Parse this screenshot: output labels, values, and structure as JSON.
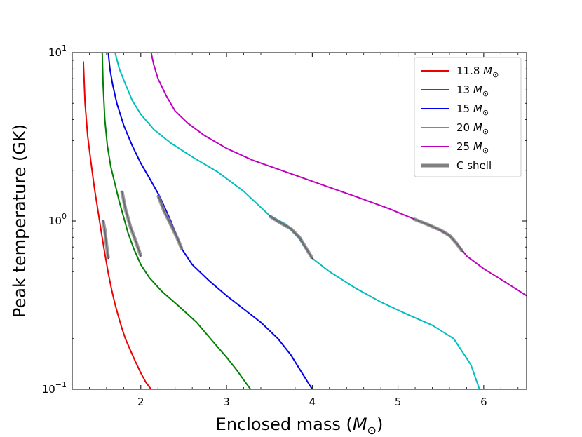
{
  "chart_data": {
    "type": "line",
    "title": "",
    "xlabel": "Enclosed mass",
    "xlabel_unit": "M",
    "xlabel_unit_sub": "⊙",
    "ylabel": "Peak temperature (GK)",
    "xlim": [
      1.2,
      6.5
    ],
    "ylim": [
      0.1,
      10
    ],
    "yscale": "log",
    "x_ticks": [
      2,
      3,
      4,
      5,
      6
    ],
    "x_tick_labels": [
      "2",
      "3",
      "4",
      "5",
      "6"
    ],
    "y_ticks": [
      0.1,
      1,
      10
    ],
    "y_tick_labels": [
      {
        "base": "10",
        "exp": "−1"
      },
      {
        "base": "10",
        "exp": "0"
      },
      {
        "base": "10",
        "exp": "1"
      }
    ],
    "grid": false,
    "legend_position": "top-right",
    "series": [
      {
        "name": "11.8",
        "unit": "M",
        "unit_sub": "⊙",
        "color": "#ee0000",
        "x": [
          1.33,
          1.35,
          1.38,
          1.42,
          1.46,
          1.5,
          1.54,
          1.58,
          1.62,
          1.66,
          1.7,
          1.74,
          1.78,
          1.82,
          1.88,
          1.94,
          2.0,
          2.06,
          2.12
        ],
        "y": [
          8.8,
          5.0,
          3.2,
          2.2,
          1.55,
          1.15,
          0.85,
          0.64,
          0.49,
          0.39,
          0.32,
          0.27,
          0.23,
          0.2,
          0.17,
          0.145,
          0.125,
          0.11,
          0.1
        ]
      },
      {
        "name": "13",
        "unit": "M",
        "unit_sub": "⊙",
        "color": "#008000",
        "x": [
          1.55,
          1.56,
          1.58,
          1.61,
          1.65,
          1.7,
          1.75,
          1.8,
          1.85,
          1.92,
          2.0,
          2.1,
          2.25,
          2.45,
          2.65,
          2.85,
          3.0,
          3.12,
          3.22,
          3.28
        ],
        "y": [
          10.0,
          6.5,
          4.0,
          2.8,
          2.1,
          1.65,
          1.3,
          1.05,
          0.85,
          0.68,
          0.55,
          0.46,
          0.38,
          0.31,
          0.25,
          0.19,
          0.155,
          0.13,
          0.11,
          0.1
        ]
      },
      {
        "name": "15",
        "unit": "M",
        "unit_sub": "⊙",
        "color": "#0000ee",
        "x": [
          1.62,
          1.64,
          1.67,
          1.72,
          1.8,
          1.9,
          2.0,
          2.1,
          2.22,
          2.35,
          2.48,
          2.6,
          2.8,
          3.0,
          3.2,
          3.4,
          3.6,
          3.75,
          3.88,
          4.0
        ],
        "y": [
          10.0,
          8.0,
          6.5,
          5.0,
          3.7,
          2.8,
          2.2,
          1.8,
          1.4,
          1.0,
          0.68,
          0.55,
          0.44,
          0.36,
          0.3,
          0.25,
          0.2,
          0.16,
          0.125,
          0.1
        ]
      },
      {
        "name": "20",
        "unit": "M",
        "unit_sub": "⊙",
        "color": "#00bfbf",
        "x": [
          1.7,
          1.75,
          1.82,
          1.9,
          2.0,
          2.15,
          2.35,
          2.6,
          2.9,
          3.2,
          3.5,
          3.7,
          3.85,
          4.0,
          4.2,
          4.5,
          4.8,
          5.1,
          5.4,
          5.65,
          5.85,
          5.95
        ],
        "y": [
          10.0,
          8.0,
          6.5,
          5.2,
          4.3,
          3.5,
          2.9,
          2.4,
          1.95,
          1.5,
          1.08,
          0.95,
          0.78,
          0.6,
          0.5,
          0.4,
          0.33,
          0.28,
          0.24,
          0.2,
          0.14,
          0.1
        ]
      },
      {
        "name": "25",
        "unit": "M",
        "unit_sub": "⊙",
        "color": "#bf00bf",
        "x": [
          2.12,
          2.15,
          2.2,
          2.3,
          2.4,
          2.55,
          2.75,
          3.0,
          3.3,
          3.7,
          4.1,
          4.5,
          4.9,
          5.2,
          5.4,
          5.6,
          5.7,
          5.8,
          6.0,
          6.2,
          6.5
        ],
        "y": [
          10.0,
          8.5,
          7.0,
          5.5,
          4.5,
          3.8,
          3.2,
          2.7,
          2.3,
          1.95,
          1.65,
          1.4,
          1.18,
          1.02,
          0.93,
          0.82,
          0.72,
          0.62,
          0.52,
          0.45,
          0.36
        ]
      }
    ],
    "c_shell": {
      "name": "C shell",
      "color": "#808080",
      "segments": [
        {
          "x": [
            1.56,
            1.58,
            1.6,
            1.62
          ],
          "y": [
            1.0,
            0.88,
            0.72,
            0.6
          ]
        },
        {
          "x": [
            1.78,
            1.82,
            1.88,
            1.94,
            2.0
          ],
          "y": [
            1.5,
            1.18,
            0.92,
            0.76,
            0.62
          ]
        },
        {
          "x": [
            2.2,
            2.27,
            2.35,
            2.42,
            2.48
          ],
          "y": [
            1.42,
            1.15,
            0.95,
            0.8,
            0.68
          ]
        },
        {
          "x": [
            3.5,
            3.62,
            3.75,
            3.85,
            3.92,
            4.0
          ],
          "y": [
            1.07,
            0.98,
            0.9,
            0.8,
            0.7,
            0.6
          ]
        },
        {
          "x": [
            5.18,
            5.35,
            5.5,
            5.6,
            5.68,
            5.75
          ],
          "y": [
            1.03,
            0.95,
            0.88,
            0.82,
            0.74,
            0.66
          ]
        }
      ]
    }
  }
}
